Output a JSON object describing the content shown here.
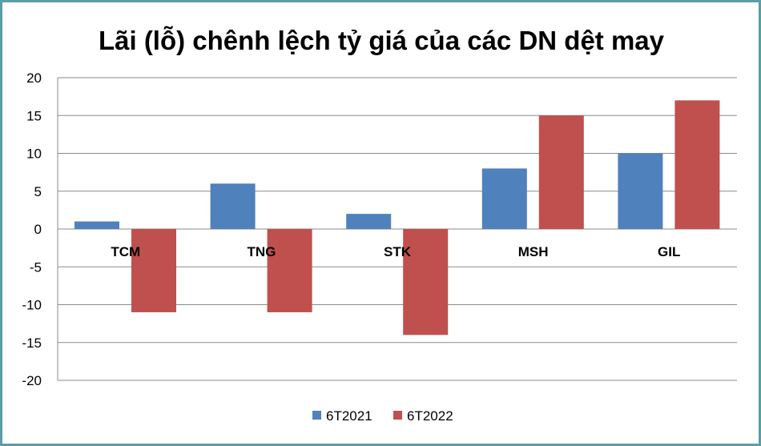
{
  "chart_data": {
    "type": "bar",
    "title": "Lãi (lỗ) chênh lệch tỷ giá của các DN dệt may",
    "categories": [
      "TCM",
      "TNG",
      "STK",
      "MSH",
      "GIL"
    ],
    "series": [
      {
        "name": "6T2021",
        "values": [
          1,
          6,
          2,
          8,
          10
        ],
        "color": "#4f81bd"
      },
      {
        "name": "6T2022",
        "values": [
          -11,
          -11,
          -14,
          15,
          17
        ],
        "color": "#c0504d"
      }
    ],
    "yticks": [
      20,
      15,
      10,
      5,
      0,
      -5,
      -10,
      -15,
      -20
    ],
    "ylim": [
      -20,
      20
    ],
    "grid": true,
    "legend_position": "bottom"
  }
}
